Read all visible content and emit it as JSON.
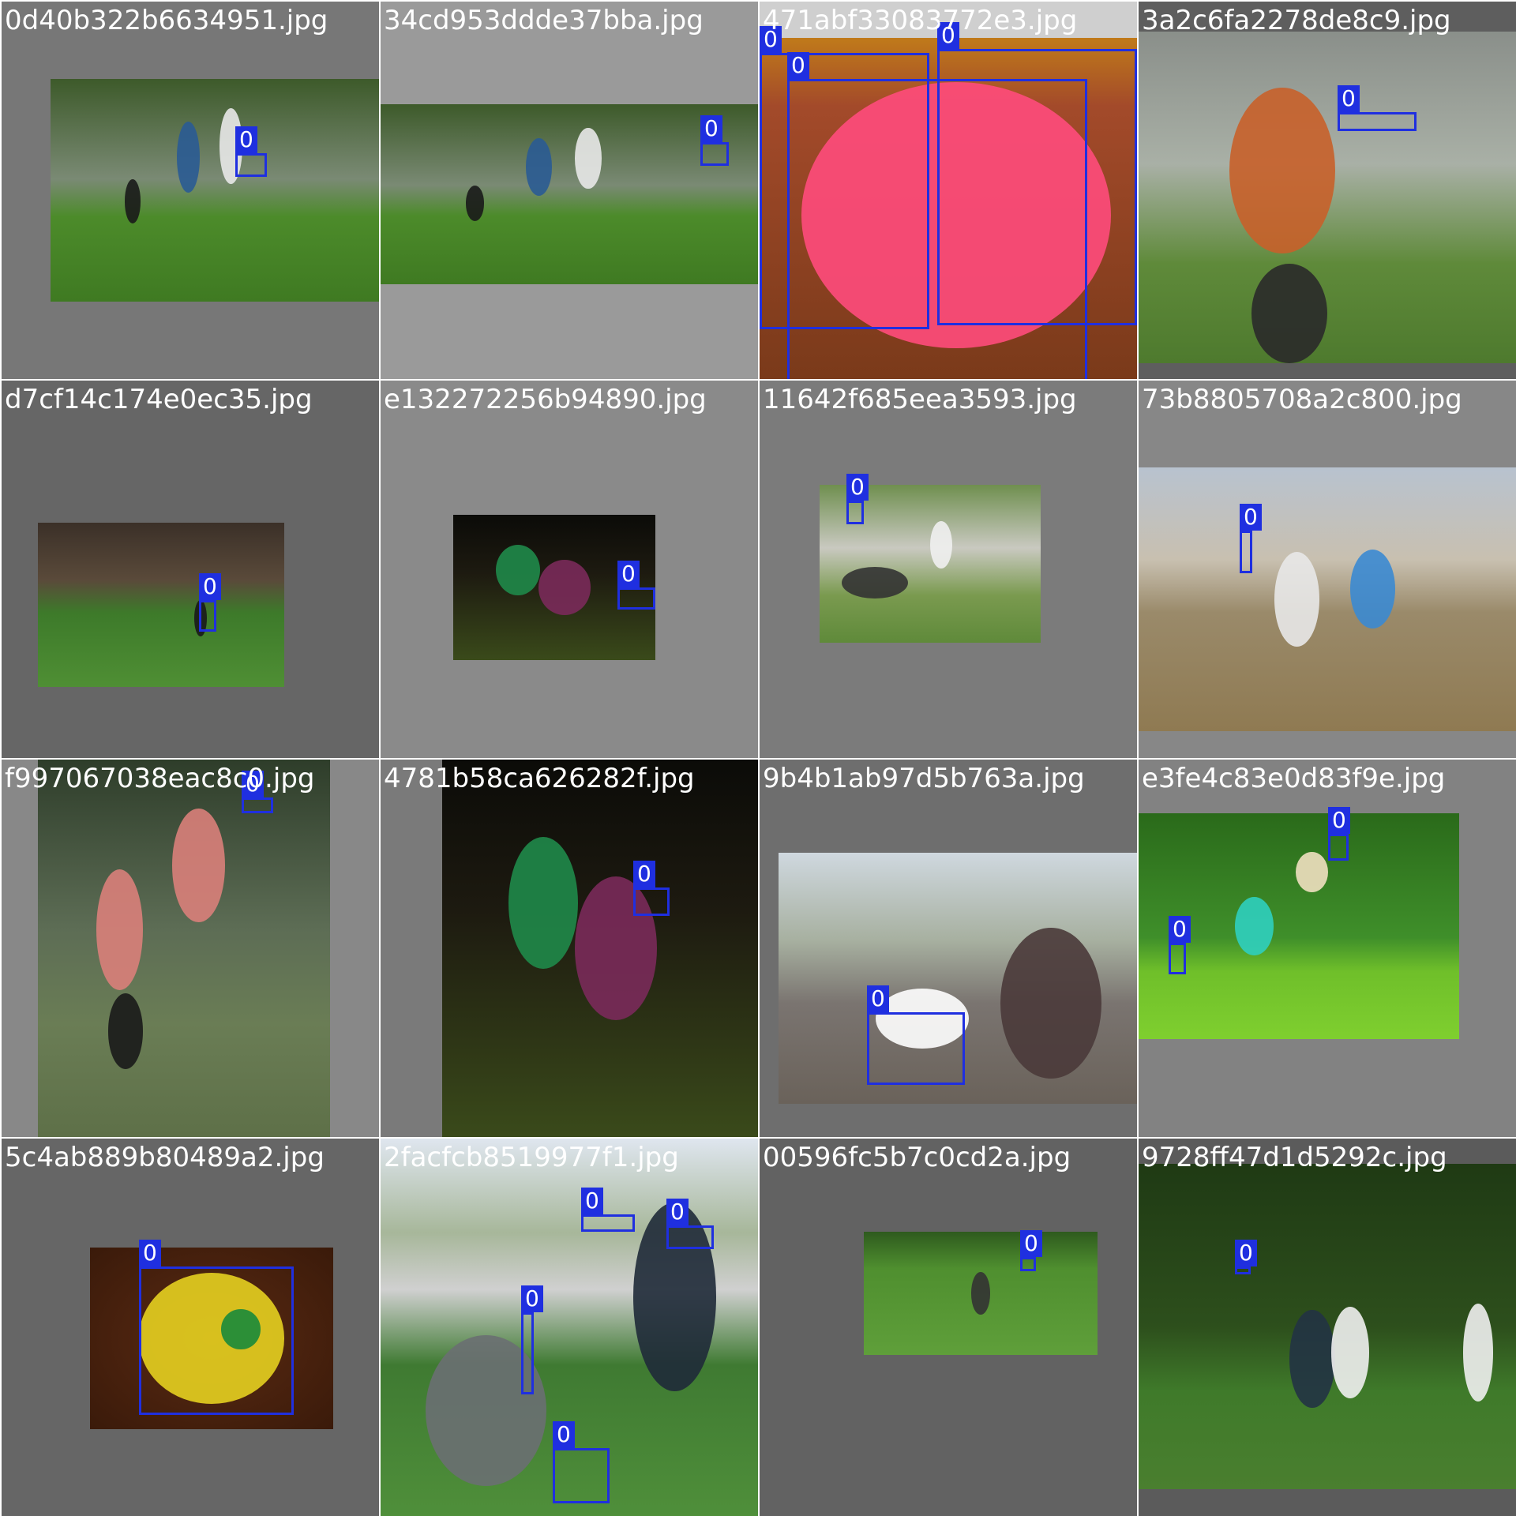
{
  "colors": {
    "box": "#1f2fe0",
    "label_text": "#ffffff"
  },
  "tiles": [
    {
      "filename": "0d40b322b6634951.jpg",
      "bg": "#777777",
      "photo": "players-field",
      "boxes": [
        {
          "label": "0"
        }
      ]
    },
    {
      "filename": "34cd953ddde37bba.jpg",
      "bg": "#9a9a9a",
      "photo": "players-field",
      "boxes": [
        {
          "label": "0"
        }
      ]
    },
    {
      "filename": "471abf33083772e3.jpg",
      "bg": "#cfcfcf",
      "photo": "pink-disc",
      "boxes": [
        {
          "label": "0"
        },
        {
          "label": "0"
        },
        {
          "label": "0"
        }
      ]
    },
    {
      "filename": "3a2c6fa2278de8c9.jpg",
      "bg": "#5e5e5e",
      "photo": "player-orange",
      "boxes": [
        {
          "label": "0"
        }
      ]
    },
    {
      "filename": "d7cf14c174e0ec35.jpg",
      "bg": "#666666",
      "photo": "field-buildings",
      "boxes": [
        {
          "label": "0"
        }
      ]
    },
    {
      "filename": "e132272256b94890.jpg",
      "bg": "#8a8a8a",
      "photo": "night-players",
      "boxes": [
        {
          "label": "0"
        }
      ]
    },
    {
      "filename": "11642f685eea3593.jpg",
      "bg": "#7b7b7b",
      "photo": "crowd-field",
      "boxes": [
        {
          "label": "0"
        }
      ]
    },
    {
      "filename": "73b8805708a2c800.jpg",
      "bg": "#878787",
      "photo": "dirt-field",
      "boxes": [
        {
          "label": "0"
        }
      ]
    },
    {
      "filename": "f997067038eac8c0.jpg",
      "bg": "#888888",
      "photo": "jumping-player",
      "boxes": [
        {
          "label": "0"
        }
      ]
    },
    {
      "filename": "4781b58ca626282f.jpg",
      "bg": "#7a7a7a",
      "photo": "night-players",
      "boxes": [
        {
          "label": "0"
        }
      ]
    },
    {
      "filename": "9b4b1ab97d5b763a.jpg",
      "bg": "#6e6e6e",
      "photo": "snow-road",
      "boxes": [
        {
          "label": "0"
        }
      ]
    },
    {
      "filename": "e3fe4c83e0d83f9e.jpg",
      "bg": "#828282",
      "photo": "dog-field",
      "boxes": [
        {
          "label": "0"
        },
        {
          "label": "0"
        }
      ]
    },
    {
      "filename": "5c4ab889b80489a2.jpg",
      "bg": "#666666",
      "photo": "yellow-disc",
      "boxes": [
        {
          "label": "0"
        }
      ]
    },
    {
      "filename": "2facfcb8519977f1.jpg",
      "bg": "#8c8c8c",
      "photo": "dog-stadium",
      "boxes": [
        {
          "label": "0"
        },
        {
          "label": "0"
        },
        {
          "label": "0"
        },
        {
          "label": "0"
        }
      ]
    },
    {
      "filename": "00596fc5b7c0cd2a.jpg",
      "bg": "#626262",
      "photo": "wide-field",
      "boxes": [
        {
          "label": "0"
        }
      ]
    },
    {
      "filename": "9728ff47d1d5292c.jpg",
      "bg": "#5b5b5b",
      "photo": "trees-field",
      "boxes": [
        {
          "label": "0"
        }
      ]
    }
  ]
}
